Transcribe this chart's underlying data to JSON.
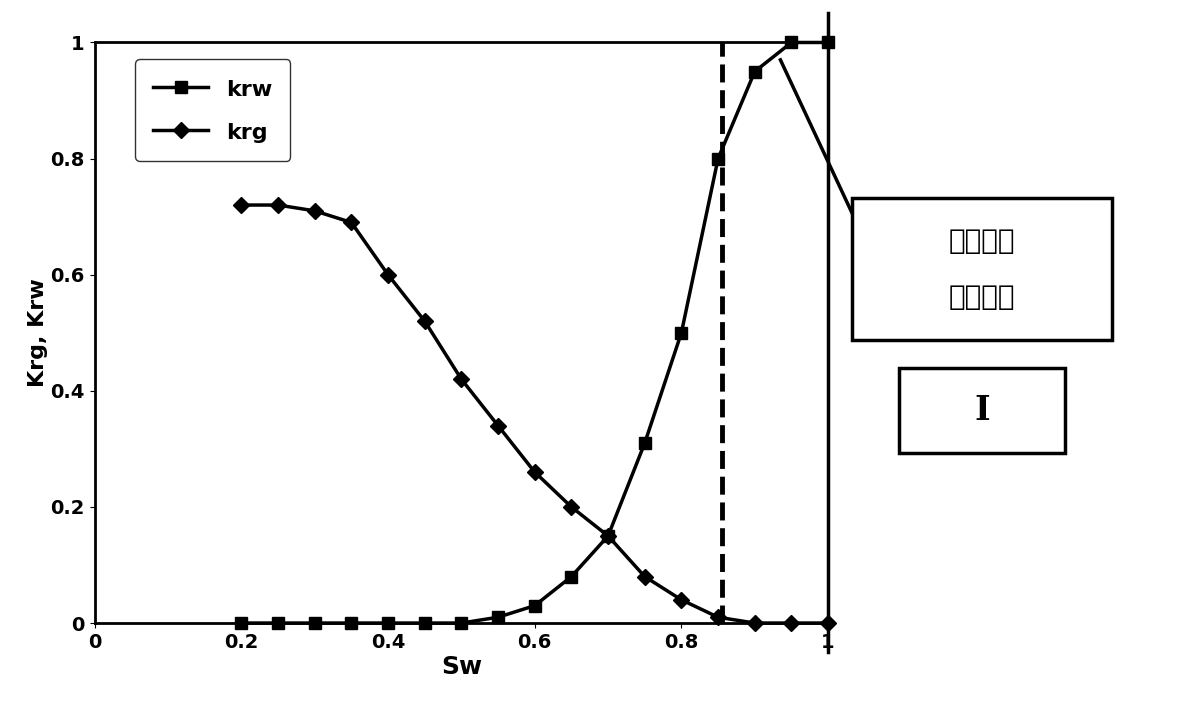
{
  "krw_x": [
    0.2,
    0.25,
    0.3,
    0.35,
    0.4,
    0.45,
    0.5,
    0.55,
    0.6,
    0.65,
    0.7,
    0.75,
    0.8,
    0.85,
    0.9,
    0.95,
    1.0
  ],
  "krw_y": [
    0.0,
    0.0,
    0.0,
    0.0,
    0.0,
    0.0,
    0.0,
    0.01,
    0.03,
    0.08,
    0.15,
    0.31,
    0.5,
    0.8,
    0.95,
    1.0,
    1.0
  ],
  "krg_x": [
    0.2,
    0.25,
    0.3,
    0.35,
    0.4,
    0.45,
    0.5,
    0.55,
    0.6,
    0.65,
    0.7,
    0.75,
    0.8,
    0.85,
    0.9,
    0.95,
    1.0
  ],
  "krg_y": [
    0.72,
    0.72,
    0.71,
    0.69,
    0.6,
    0.52,
    0.42,
    0.34,
    0.26,
    0.2,
    0.15,
    0.08,
    0.04,
    0.01,
    0.0,
    0.0,
    0.0
  ],
  "dashed_line_x": 0.855,
  "solid_vline_x": 1.0,
  "xlim": [
    0,
    1.0
  ],
  "ylim": [
    0,
    1.0
  ],
  "xlabel": "Sw",
  "ylabel": "Krg, Krw",
  "xticks": [
    0,
    0.2,
    0.4,
    0.6,
    0.8,
    1
  ],
  "yticks": [
    0,
    0.2,
    0.4,
    0.6,
    0.8,
    1
  ],
  "annotation_text": "单相水流\n动相渗区",
  "annotation_roman": "I",
  "line_color": "#000000",
  "bg_color": "#ffffff",
  "marker_size": 9,
  "linewidth": 2.5,
  "dashed_linewidth": 3.5,
  "solid_vline_linewidth": 2.5
}
